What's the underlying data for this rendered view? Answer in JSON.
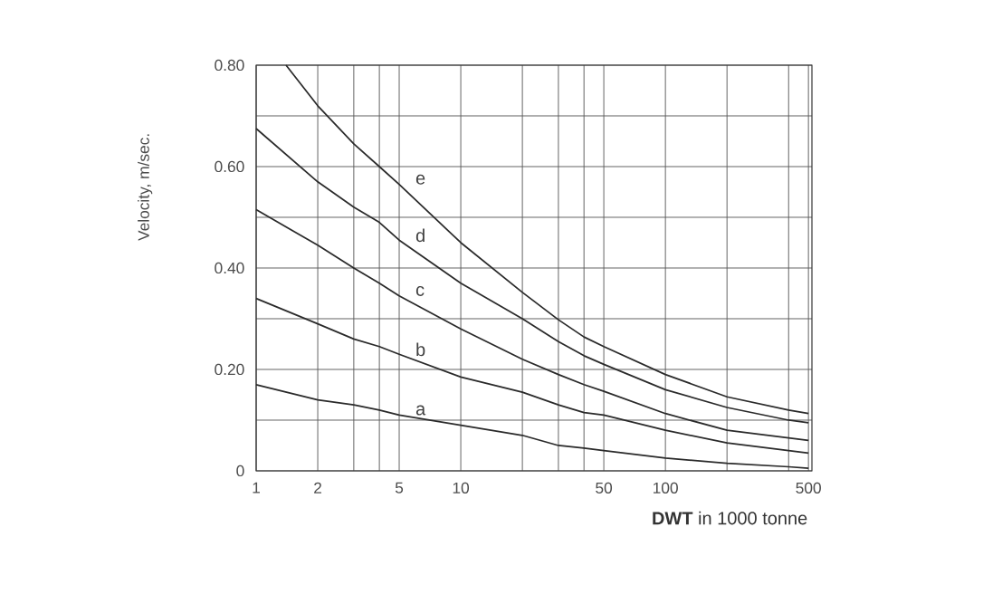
{
  "chart_data": {
    "type": "line",
    "xlabel": "**DWT** in 1000 tonne",
    "ylabel": "Velocity, m/sec.",
    "x": [
      1,
      2,
      3,
      4,
      5,
      10,
      20,
      30,
      40,
      50,
      100,
      200,
      400,
      500
    ],
    "series": [
      {
        "name": "a",
        "color": "#2a2a2a",
        "values": [
          0.17,
          0.14,
          0.13,
          0.12,
          0.11,
          0.09,
          0.07,
          0.05,
          0.045,
          0.04,
          0.025,
          0.015,
          0.008,
          0.005
        ]
      },
      {
        "name": "b",
        "color": "#2a2a2a",
        "values": [
          0.34,
          0.29,
          0.26,
          0.245,
          0.23,
          0.185,
          0.155,
          0.13,
          0.115,
          0.11,
          0.08,
          0.055,
          0.04,
          0.035
        ]
      },
      {
        "name": "c",
        "color": "#2a2a2a",
        "values": [
          0.515,
          0.445,
          0.4,
          0.37,
          0.345,
          0.28,
          0.22,
          0.19,
          0.17,
          0.157,
          0.113,
          0.08,
          0.065,
          0.06
        ]
      },
      {
        "name": "d",
        "color": "#2a2a2a",
        "values": [
          0.675,
          0.57,
          0.52,
          0.49,
          0.455,
          0.37,
          0.3,
          0.255,
          0.227,
          0.21,
          0.16,
          0.125,
          0.1,
          0.095
        ]
      },
      {
        "name": "e",
        "color": "#2a2a2a",
        "x": [
          1.4,
          2,
          3,
          4,
          5,
          10,
          20,
          30,
          40,
          50,
          100,
          200,
          400,
          500
        ],
        "values": [
          0.8,
          0.72,
          0.645,
          0.6,
          0.565,
          0.45,
          0.352,
          0.298,
          0.264,
          0.245,
          0.19,
          0.146,
          0.12,
          0.113
        ]
      }
    ],
    "log": "x",
    "xlim": [
      1,
      520
    ],
    "ylim": [
      0,
      0.8
    ],
    "xticks": [
      1,
      2,
      {
        "value": 3,
        "label": null
      },
      {
        "value": 4,
        "label": null
      },
      5,
      10,
      {
        "value": 20,
        "label": null
      },
      {
        "value": 30,
        "label": null
      },
      {
        "value": 40,
        "label": null
      },
      50,
      100,
      {
        "value": 200,
        "label": null
      },
      {
        "value": 400,
        "label": null
      },
      500
    ],
    "yticks": [
      0,
      {
        "value": 0.1,
        "label": null
      },
      {
        "value": 0.2,
        "label": "0.20"
      },
      {
        "value": 0.3,
        "label": null
      },
      {
        "value": 0.4,
        "label": "0.40"
      },
      {
        "value": 0.5,
        "label": null
      },
      {
        "value": 0.6,
        "label": "0.60"
      },
      {
        "value": 0.7,
        "label": null
      },
      {
        "value": 0.8,
        "label": "0.80"
      }
    ],
    "grid": true,
    "marker": "none",
    "line_style": "solid"
  }
}
